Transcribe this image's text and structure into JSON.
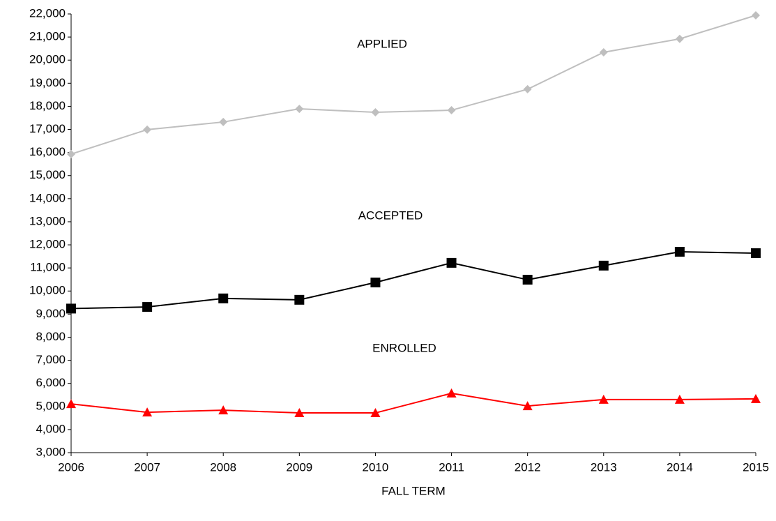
{
  "chart_data": {
    "type": "line",
    "xlabel": "FALL TERM",
    "x": [
      2006,
      2007,
      2008,
      2009,
      2010,
      2011,
      2012,
      2013,
      2014,
      2015
    ],
    "series": [
      {
        "name": "APPLIED",
        "color": "#bfbfbf",
        "marker": "diamond",
        "values": [
          15930,
          16990,
          17320,
          17890,
          17740,
          17830,
          18740,
          20340,
          20920,
          21940
        ]
      },
      {
        "name": "ACCEPTED",
        "color": "#000000",
        "marker": "square",
        "values": [
          9240,
          9310,
          9680,
          9620,
          10370,
          11220,
          10490,
          11100,
          11700,
          11640
        ]
      },
      {
        "name": "ENROLLED",
        "color": "#ff0000",
        "marker": "triangle",
        "values": [
          5110,
          4750,
          4840,
          4720,
          4720,
          5570,
          5020,
          5300,
          5300,
          5330
        ]
      }
    ],
    "xlim": [
      2006,
      2015
    ],
    "xticks": [
      2006,
      2007,
      2008,
      2009,
      2010,
      2011,
      2012,
      2013,
      2014,
      2015
    ],
    "ylim": [
      3000,
      22000
    ],
    "yticks": [
      {
        "value": 3000,
        "label": "3,000"
      },
      {
        "value": 4000,
        "label": "4,000"
      },
      {
        "value": 5000,
        "label": "5,000"
      },
      {
        "value": 6000,
        "label": "6,000"
      },
      {
        "value": 7000,
        "label": "7,000"
      },
      {
        "value": 8000,
        "label": "8,000"
      },
      {
        "value": 9000,
        "label": "9,000"
      },
      {
        "value": 10000,
        "label": "10,000"
      },
      {
        "value": 11000,
        "label": "11,000"
      },
      {
        "value": 12000,
        "label": "12,000"
      },
      {
        "value": 13000,
        "label": "13,000"
      },
      {
        "value": 14000,
        "label": "14,000"
      },
      {
        "value": 15000,
        "label": "15,000"
      },
      {
        "value": 16000,
        "label": "16,000"
      },
      {
        "value": 17000,
        "label": "17,000"
      },
      {
        "value": 18000,
        "label": "18,000"
      },
      {
        "value": 19000,
        "label": "19,000"
      },
      {
        "value": 20000,
        "label": "20,000"
      },
      {
        "value": 21000,
        "label": "21,000"
      },
      {
        "value": 22000,
        "label": "22,000"
      }
    ],
    "grid": false
  }
}
